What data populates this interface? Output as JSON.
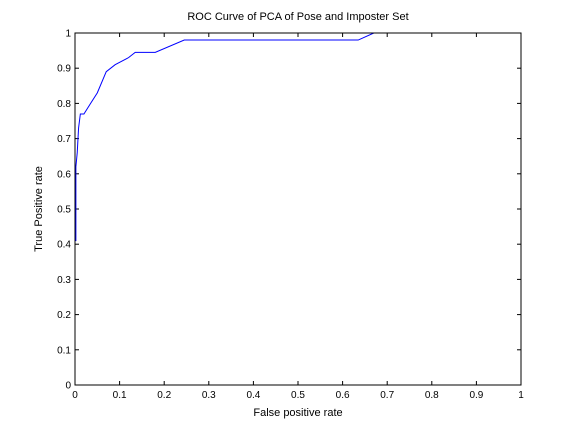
{
  "chart_data": {
    "type": "line",
    "title": "ROC Curve of PCA of Pose and Imposter Set",
    "xlabel": "False positive rate",
    "ylabel": "True Positive rate",
    "xlim": [
      0,
      1
    ],
    "ylim": [
      0,
      1
    ],
    "xticks": [
      0,
      0.1,
      0.2,
      0.3,
      0.4,
      0.5,
      0.6,
      0.7,
      0.8,
      0.9,
      1
    ],
    "yticks": [
      0,
      0.1,
      0.2,
      0.3,
      0.4,
      0.5,
      0.6,
      0.7,
      0.8,
      0.9,
      1
    ],
    "xtick_labels": [
      "0",
      "0.1",
      "0.2",
      "0.3",
      "0.4",
      "0.5",
      "0.6",
      "0.7",
      "0.8",
      "0.9",
      "1"
    ],
    "ytick_labels": [
      "0",
      "0.1",
      "0.2",
      "0.3",
      "0.4",
      "0.5",
      "0.6",
      "0.7",
      "0.8",
      "0.9",
      "1"
    ],
    "grid": false,
    "series": [
      {
        "name": "ROC",
        "color": "#0000ff",
        "x": [
          0,
          0,
          0.002,
          0.002,
          0.005,
          0.008,
          0.012,
          0.02,
          0.035,
          0.05,
          0.07,
          0.09,
          0.12,
          0.135,
          0.18,
          0.245,
          0.5,
          0.635,
          0.67,
          0.8,
          1.0
        ],
        "y": [
          0,
          0.41,
          0.41,
          0.62,
          0.66,
          0.73,
          0.77,
          0.77,
          0.8,
          0.83,
          0.89,
          0.91,
          0.93,
          0.945,
          0.945,
          0.98,
          0.98,
          0.98,
          1.0,
          1.0,
          1.0
        ]
      }
    ]
  }
}
